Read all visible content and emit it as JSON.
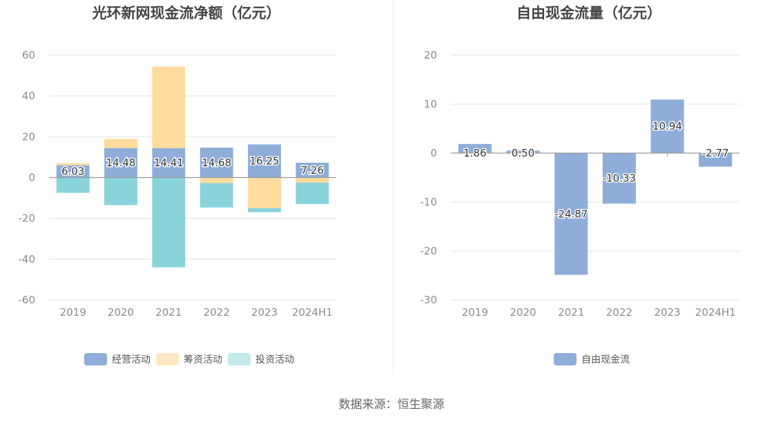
{
  "source": "数据来源：恒生聚源",
  "chart_data": [
    {
      "type": "bar",
      "stacked": true,
      "title": "光环新网现金流净额（亿元）",
      "categories": [
        "2019",
        "2020",
        "2021",
        "2022",
        "2023",
        "2024H1"
      ],
      "ylim": [
        -60,
        60
      ],
      "yticks": [
        60,
        40,
        20,
        0,
        -20,
        -40,
        -60
      ],
      "grid": true,
      "legend_position": "bottom",
      "series": [
        {
          "name": "经营活动",
          "color": "#8eadd9",
          "values": [
            6.03,
            14.48,
            14.41,
            14.68,
            16.25,
            7.26
          ],
          "show_labels": true
        },
        {
          "name": "筹资活动",
          "color": "#ffdc9e",
          "legend_color": "#fde8c4",
          "values": [
            1.0,
            4.5,
            40.0,
            -2.7,
            -15.0,
            -2.5
          ],
          "show_labels": false
        },
        {
          "name": "投资活动",
          "color": "#88d4da",
          "legend_color": "#c2e9ec",
          "values": [
            -7.5,
            -13.5,
            -44.0,
            -12.0,
            -2.0,
            -10.5
          ],
          "show_labels": false
        }
      ]
    },
    {
      "type": "bar",
      "title": "自由现金流量（亿元）",
      "categories": [
        "2019",
        "2020",
        "2021",
        "2022",
        "2023",
        "2024H1"
      ],
      "ylim": [
        -30,
        20
      ],
      "yticks": [
        20,
        10,
        0,
        -10,
        -20,
        -30
      ],
      "grid": true,
      "legend_position": "bottom",
      "series": [
        {
          "name": "自由现金流",
          "color": "#8eadd9",
          "values": [
            1.86,
            0.5,
            -24.87,
            -10.33,
            10.94,
            -2.77
          ],
          "show_labels": true
        }
      ]
    }
  ]
}
